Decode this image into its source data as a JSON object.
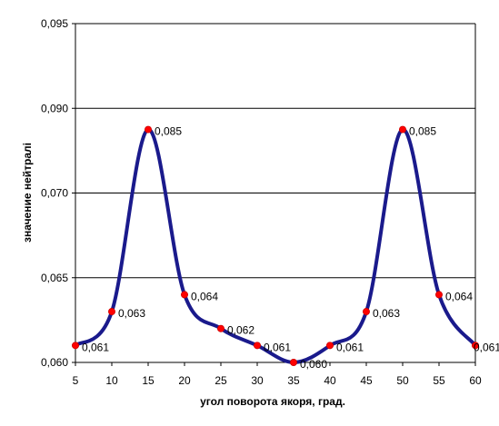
{
  "chart_data": {
    "type": "line",
    "title": "",
    "xlabel": "угол поворота якоря, град.",
    "ylabel": "значение нейтралі",
    "x": [
      5,
      10,
      15,
      20,
      25,
      30,
      35,
      40,
      45,
      50,
      55,
      60
    ],
    "x_ticks": [
      "5",
      "10",
      "15",
      "20",
      "25",
      "30",
      "35",
      "40",
      "45",
      "50",
      "55",
      "60"
    ],
    "y_ticks": [
      "0,060",
      "0,065",
      "0,070",
      "0,090",
      "0,095"
    ],
    "series": [
      {
        "values": [
          0.061,
          0.063,
          0.085,
          0.064,
          0.062,
          0.061,
          0.06,
          0.061,
          0.063,
          0.085,
          0.064,
          0.061
        ],
        "labels": [
          "0,061",
          "0,063",
          "0,085",
          "0,064",
          "0,062",
          "0,061",
          "0,060",
          "0,061",
          "0,063",
          "0,085",
          "0,064",
          "0,061"
        ],
        "line_color": "#1a1a8c",
        "marker_color": "#ff0000"
      }
    ],
    "grid": "horizontal",
    "legend": "none",
    "plot_background": "#ffffff"
  }
}
